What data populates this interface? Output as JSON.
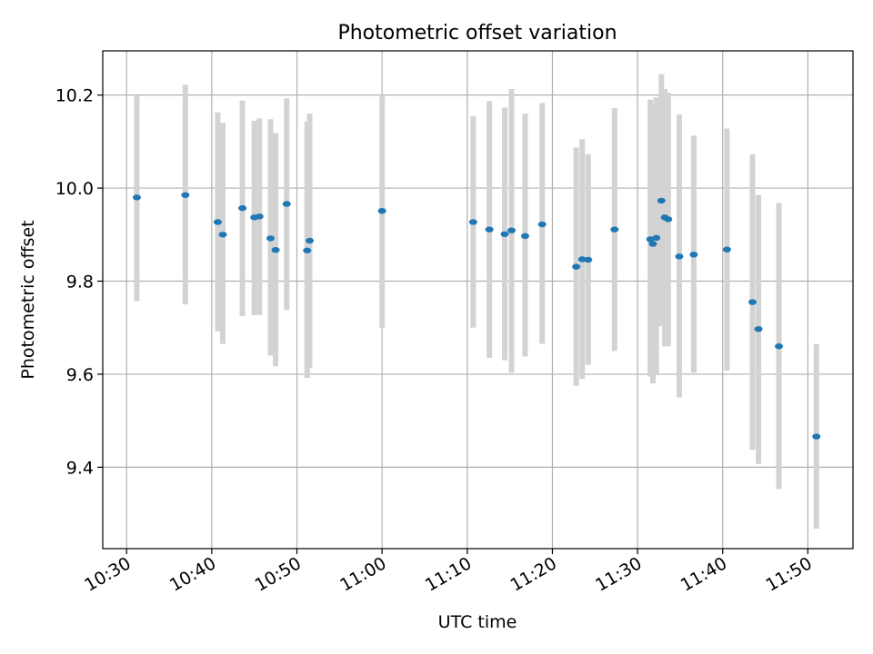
{
  "chart_data": {
    "type": "scatter",
    "title": "Photometric offset variation",
    "xlabel": "UTC time",
    "ylabel": "Photometric offset",
    "xlim_minutes": [
      627.2,
      715.3
    ],
    "ylim": [
      9.225,
      10.295
    ],
    "grid": true,
    "x_ticks": [
      {
        "minute": 630,
        "label": "10:30"
      },
      {
        "minute": 640,
        "label": "10:40"
      },
      {
        "minute": 650,
        "label": "10:50"
      },
      {
        "minute": 660,
        "label": "11:00"
      },
      {
        "minute": 670,
        "label": "11:10"
      },
      {
        "minute": 680,
        "label": "11:20"
      },
      {
        "minute": 690,
        "label": "11:30"
      },
      {
        "minute": 700,
        "label": "11:40"
      },
      {
        "minute": 710,
        "label": "11:50"
      }
    ],
    "y_ticks": [
      {
        "value": 9.4,
        "label": "9.4"
      },
      {
        "value": 9.6,
        "label": "9.6"
      },
      {
        "value": 9.8,
        "label": "9.8"
      },
      {
        "value": 10.0,
        "label": "10.0"
      },
      {
        "value": 10.2,
        "label": "10.2"
      }
    ],
    "colors": {
      "point": "#1f77b4",
      "errorbar": "#d3d3d3",
      "grid": "#b0b0b0"
    },
    "series": [
      {
        "name": "offset",
        "points": [
          {
            "t": 631.2,
            "y": 9.98,
            "ylo": 9.757,
            "yhi": 10.198
          },
          {
            "t": 636.9,
            "y": 9.985,
            "ylo": 9.75,
            "yhi": 10.222
          },
          {
            "t": 640.7,
            "y": 9.927,
            "ylo": 9.692,
            "yhi": 10.163
          },
          {
            "t": 641.3,
            "y": 9.9,
            "ylo": 9.665,
            "yhi": 10.14
          },
          {
            "t": 643.6,
            "y": 9.957,
            "ylo": 9.725,
            "yhi": 10.188
          },
          {
            "t": 645.0,
            "y": 9.937,
            "ylo": 9.727,
            "yhi": 10.145
          },
          {
            "t": 645.6,
            "y": 9.939,
            "ylo": 9.727,
            "yhi": 10.15
          },
          {
            "t": 646.9,
            "y": 9.892,
            "ylo": 9.64,
            "yhi": 10.148
          },
          {
            "t": 647.5,
            "y": 9.867,
            "ylo": 9.617,
            "yhi": 10.118
          },
          {
            "t": 648.8,
            "y": 9.966,
            "ylo": 9.738,
            "yhi": 10.193
          },
          {
            "t": 651.2,
            "y": 9.866,
            "ylo": 9.592,
            "yhi": 10.143
          },
          {
            "t": 651.5,
            "y": 9.887,
            "ylo": 9.613,
            "yhi": 10.16
          },
          {
            "t": 660.0,
            "y": 9.951,
            "ylo": 9.7,
            "yhi": 10.2
          },
          {
            "t": 670.7,
            "y": 9.927,
            "ylo": 9.7,
            "yhi": 10.155
          },
          {
            "t": 672.6,
            "y": 9.911,
            "ylo": 9.635,
            "yhi": 10.187
          },
          {
            "t": 674.4,
            "y": 9.901,
            "ylo": 9.63,
            "yhi": 10.173
          },
          {
            "t": 675.2,
            "y": 9.909,
            "ylo": 9.603,
            "yhi": 10.213
          },
          {
            "t": 676.8,
            "y": 9.897,
            "ylo": 9.638,
            "yhi": 10.16
          },
          {
            "t": 678.8,
            "y": 9.922,
            "ylo": 9.665,
            "yhi": 10.183
          },
          {
            "t": 682.8,
            "y": 9.831,
            "ylo": 9.575,
            "yhi": 10.087
          },
          {
            "t": 683.5,
            "y": 9.847,
            "ylo": 9.59,
            "yhi": 10.105
          },
          {
            "t": 684.2,
            "y": 9.846,
            "ylo": 9.62,
            "yhi": 10.073
          },
          {
            "t": 687.3,
            "y": 9.911,
            "ylo": 9.65,
            "yhi": 10.172
          },
          {
            "t": 691.5,
            "y": 9.89,
            "ylo": 9.595,
            "yhi": 10.19
          },
          {
            "t": 691.8,
            "y": 9.88,
            "ylo": 9.58,
            "yhi": 10.18
          },
          {
            "t": 692.2,
            "y": 9.893,
            "ylo": 9.6,
            "yhi": 10.195
          },
          {
            "t": 692.8,
            "y": 9.973,
            "ylo": 9.703,
            "yhi": 10.245
          },
          {
            "t": 693.2,
            "y": 9.937,
            "ylo": 9.66,
            "yhi": 10.213
          },
          {
            "t": 693.6,
            "y": 9.933,
            "ylo": 9.66,
            "yhi": 10.205
          },
          {
            "t": 694.9,
            "y": 9.853,
            "ylo": 9.55,
            "yhi": 10.158
          },
          {
            "t": 696.6,
            "y": 9.857,
            "ylo": 9.603,
            "yhi": 10.113
          },
          {
            "t": 700.5,
            "y": 9.868,
            "ylo": 9.608,
            "yhi": 10.128
          },
          {
            "t": 703.5,
            "y": 9.755,
            "ylo": 9.437,
            "yhi": 10.073
          },
          {
            "t": 704.2,
            "y": 9.697,
            "ylo": 9.407,
            "yhi": 9.985
          },
          {
            "t": 706.6,
            "y": 9.66,
            "ylo": 9.353,
            "yhi": 9.968
          },
          {
            "t": 711.0,
            "y": 9.466,
            "ylo": 9.268,
            "yhi": 9.665
          }
        ]
      }
    ]
  }
}
